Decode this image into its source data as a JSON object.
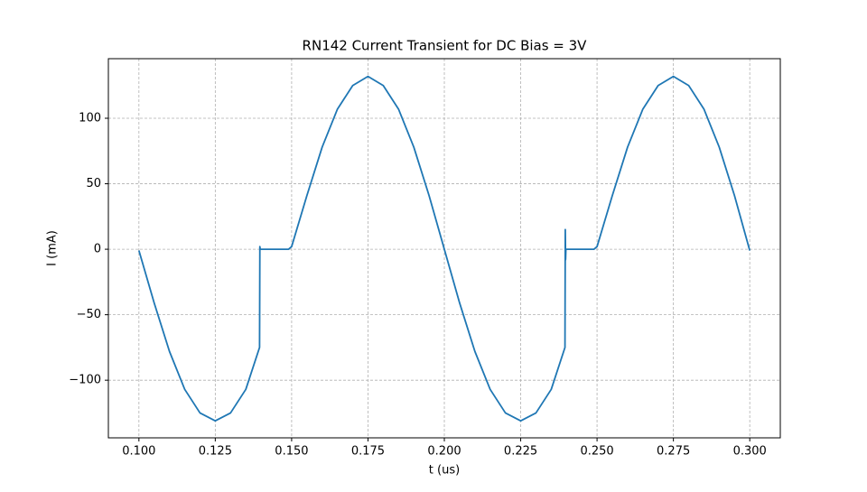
{
  "chart_data": {
    "type": "line",
    "title": "RN142 Current Transient for DC Bias = 3V",
    "x_label": "t (us)",
    "y_label": "I (mA)",
    "color": "#1f77b4",
    "grid": true,
    "x": [
      0.1,
      0.105,
      0.11,
      0.115,
      0.12,
      0.125,
      0.13,
      0.135,
      0.1395,
      0.1396,
      0.1397,
      0.149,
      0.15,
      0.155,
      0.16,
      0.165,
      0.17,
      0.175,
      0.18,
      0.185,
      0.19,
      0.195,
      0.2,
      0.205,
      0.21,
      0.215,
      0.22,
      0.225,
      0.23,
      0.235,
      0.2395,
      0.2396,
      0.2397,
      0.2398,
      0.249,
      0.25,
      0.255,
      0.26,
      0.265,
      0.27,
      0.275,
      0.28,
      0.285,
      0.29,
      0.295,
      0.3
    ],
    "values": [
      -1,
      -41,
      -78,
      -107,
      -125,
      -131,
      -125,
      -107,
      -75,
      2,
      0,
      0,
      2,
      41,
      78,
      107,
      125,
      132,
      125,
      107,
      78,
      41,
      0,
      -41,
      -78,
      -107,
      -125,
      -131,
      -125,
      -107,
      -75,
      15,
      -8,
      0,
      0,
      2,
      41,
      78,
      107,
      125,
      132,
      125,
      107,
      78,
      41,
      -1
    ],
    "xlim": [
      0.09,
      0.31
    ],
    "ylim": [
      -144,
      145.5
    ],
    "xticks": [
      {
        "value": 0.1,
        "label": "0.100"
      },
      {
        "value": 0.125,
        "label": "0.125"
      },
      {
        "value": 0.15,
        "label": "0.150"
      },
      {
        "value": 0.175,
        "label": "0.175"
      },
      {
        "value": 0.2,
        "label": "0.200"
      },
      {
        "value": 0.225,
        "label": "0.225"
      },
      {
        "value": 0.25,
        "label": "0.250"
      },
      {
        "value": 0.275,
        "label": "0.275"
      },
      {
        "value": 0.3,
        "label": "0.300"
      }
    ],
    "yticks": [
      {
        "value": -100,
        "label": "−100"
      },
      {
        "value": -50,
        "label": "−50"
      },
      0,
      50,
      100
    ]
  }
}
